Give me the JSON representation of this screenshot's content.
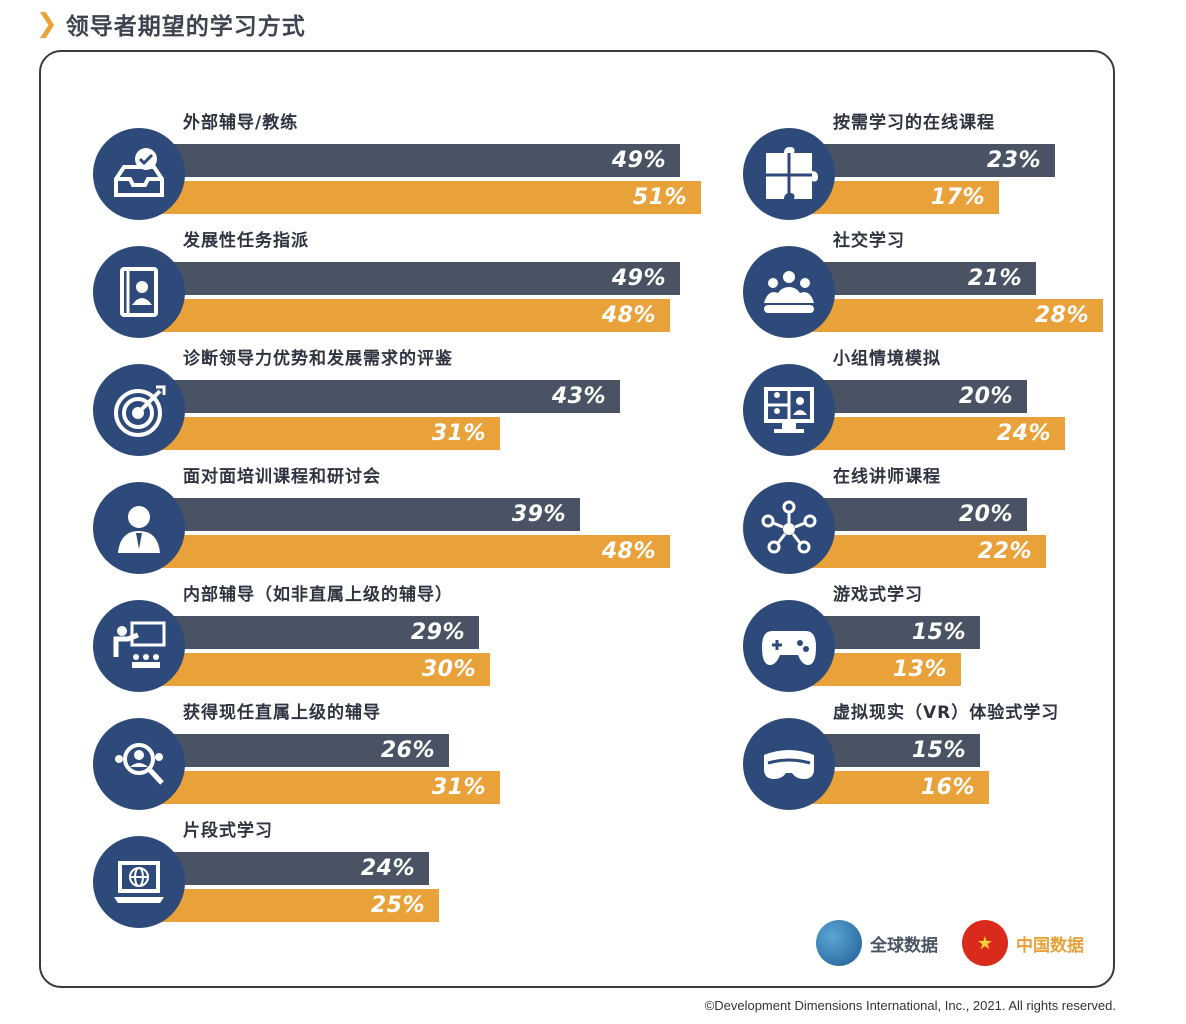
{
  "page": {
    "title": "领导者期望的学习方式",
    "copyright": "©Development Dimensions International, Inc., 2021. All rights reserved."
  },
  "legend": {
    "global": "全球数据",
    "china": "中国数据"
  },
  "colors": {
    "global_bar": "#4a5363",
    "china_bar": "#e9a13a",
    "icon_circle": "#2e4a7a",
    "accent": "#e9a13a"
  },
  "chart_data": {
    "type": "bar",
    "orientation": "horizontal",
    "unit": "%",
    "series": [
      {
        "name": "全球数据"
      },
      {
        "name": "中国数据"
      }
    ],
    "categories": [
      {
        "label": "外部辅导/教练",
        "icon": "inbox-check-icon",
        "global": 49,
        "china": 51
      },
      {
        "label": "发展性任务指派",
        "icon": "contact-book-icon",
        "global": 49,
        "china": 48
      },
      {
        "label": "诊断领导力优势和发展需求的评鉴",
        "icon": "target-icon",
        "global": 43,
        "china": 31
      },
      {
        "label": "面对面培训课程和研讨会",
        "icon": "businessman-icon",
        "global": 39,
        "china": 48
      },
      {
        "label": "内部辅导（如非直属上级的辅导）",
        "icon": "presentation-icon",
        "global": 29,
        "china": 30
      },
      {
        "label": "获得现任直属上级的辅导",
        "icon": "people-search-icon",
        "global": 26,
        "china": 31
      },
      {
        "label": "片段式学习",
        "icon": "laptop-globe-icon",
        "global": 24,
        "china": 25
      },
      {
        "label": "按需学习的在线课程",
        "icon": "puzzle-icon",
        "global": 23,
        "china": 17
      },
      {
        "label": "社交学习",
        "icon": "group-icon",
        "global": 21,
        "china": 28
      },
      {
        "label": "小组情境模拟",
        "icon": "video-conference-icon",
        "global": 20,
        "china": 24
      },
      {
        "label": "在线讲师课程",
        "icon": "network-icon",
        "global": 20,
        "china": 22
      },
      {
        "label": "游戏式学习",
        "icon": "gamepad-icon",
        "global": 15,
        "china": 13
      },
      {
        "label": "虚拟现实（VR）体验式学习",
        "icon": "vr-headset-icon",
        "global": 15,
        "china": 16
      }
    ]
  }
}
